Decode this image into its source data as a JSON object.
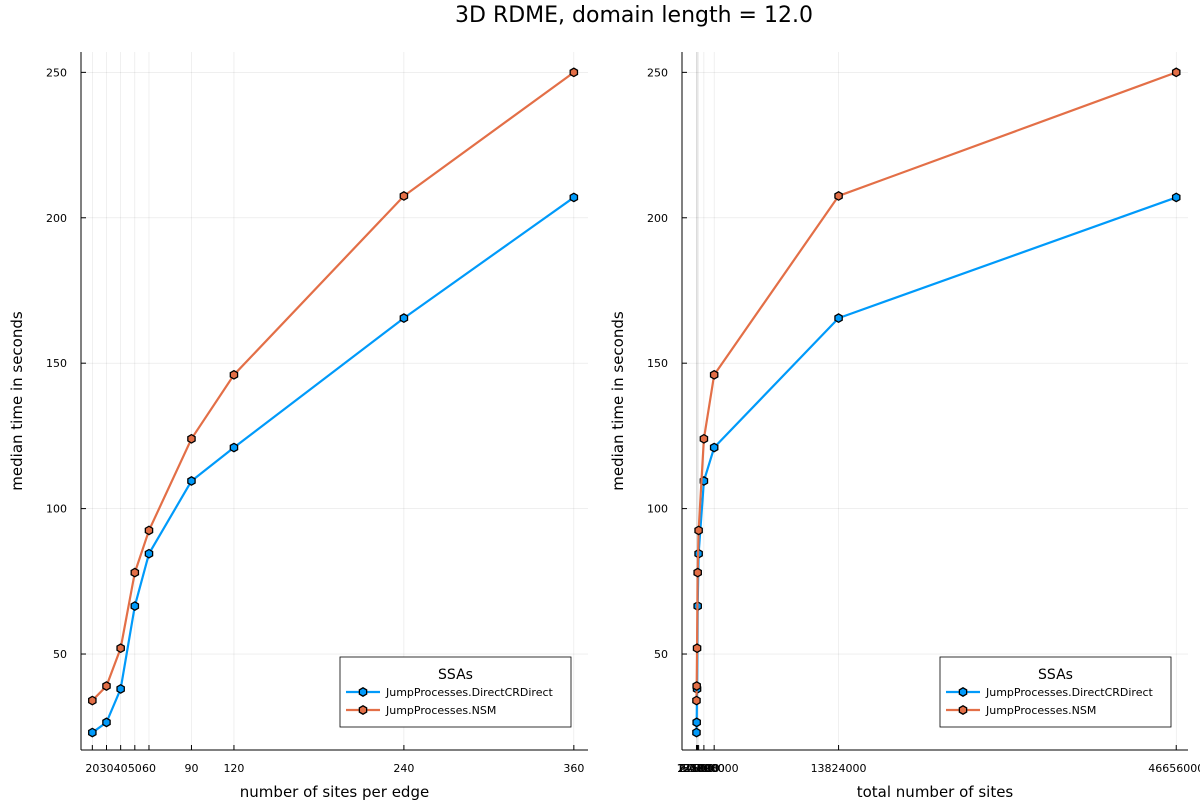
{
  "figure": {
    "title": "3D RDME, domain length = 12.0"
  },
  "chart_data": [
    {
      "type": "line",
      "xlabel": "number of sites per edge",
      "ylabel": "median time in seconds",
      "x": [
        20,
        30,
        40,
        50,
        60,
        90,
        120,
        240,
        360
      ],
      "xticks": [
        20,
        30,
        40,
        50,
        60,
        90,
        120,
        240,
        360
      ],
      "xtick_labels": [
        "20",
        "30",
        "40",
        "50",
        "60",
        "90",
        "120",
        "240",
        "360"
      ],
      "yticks": [
        50,
        100,
        150,
        200,
        250
      ],
      "ytick_labels": [
        "50",
        "100",
        "150",
        "200",
        "250"
      ],
      "xlim": [
        12,
        370
      ],
      "ylim": [
        17,
        257
      ],
      "grid": true,
      "legend": {
        "title": "SSAs",
        "position": "bottom-right"
      },
      "series": [
        {
          "name": "JumpProcesses.DirectCRDirect",
          "color": "#009AFA",
          "values": [
            23,
            26.5,
            38,
            66.5,
            84.5,
            109.5,
            121,
            165.5,
            207
          ]
        },
        {
          "name": "JumpProcesses.NSM",
          "color": "#E36F47",
          "values": [
            34,
            39,
            52,
            78,
            92.5,
            124,
            146,
            207.5,
            250
          ]
        }
      ]
    },
    {
      "type": "line",
      "xlabel": "total number of sites",
      "ylabel": "median time in seconds",
      "x": [
        8000,
        27000,
        64000,
        125000,
        216000,
        729000,
        1728000,
        13824000,
        46656000
      ],
      "xticks": [
        8000,
        27000,
        64000,
        125000,
        216000,
        729000,
        1728000,
        13824000,
        46656000
      ],
      "xtick_labels": [
        "8000",
        "27000",
        "64000",
        "125000",
        "216000",
        "729000",
        "1728000",
        "13824000",
        "46656000"
      ],
      "yticks": [
        50,
        100,
        150,
        200,
        250
      ],
      "ytick_labels": [
        "50",
        "100",
        "150",
        "200",
        "250"
      ],
      "xlim": [
        -1400000,
        47800000
      ],
      "ylim": [
        17,
        257
      ],
      "grid": true,
      "legend": {
        "title": "SSAs",
        "position": "bottom-right"
      },
      "series": [
        {
          "name": "JumpProcesses.DirectCRDirect",
          "color": "#009AFA",
          "values": [
            23,
            26.5,
            38,
            66.5,
            84.5,
            109.5,
            121,
            165.5,
            207
          ]
        },
        {
          "name": "JumpProcesses.NSM",
          "color": "#E36F47",
          "values": [
            34,
            39,
            52,
            78,
            92.5,
            124,
            146,
            207.5,
            250
          ]
        }
      ]
    }
  ]
}
